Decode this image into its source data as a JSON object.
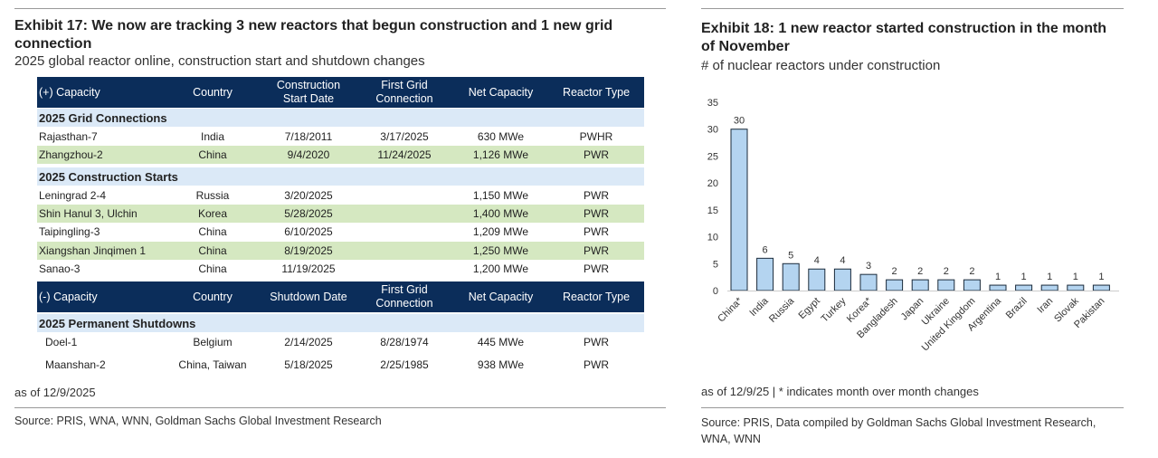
{
  "left": {
    "title": "Exhibit 17: We now are tracking 3 new reactors that begun construction and 1 new grid connection",
    "subtitle": "2025 global reactor online, construction start and shutdown changes",
    "header_plus": [
      "(+) Capacity",
      "Country",
      "Construction Start Date",
      "First Grid Connection",
      "Net Capacity",
      "Reactor Type"
    ],
    "header_minus": [
      "(-) Capacity",
      "Country",
      "Shutdown Date",
      "First Grid Connection",
      "Net Capacity",
      "Reactor Type"
    ],
    "sections": {
      "grid": "2025 Grid Connections",
      "construction": "2025 Construction Starts",
      "shutdown": "2025 Permanent Shutdowns"
    },
    "grid_rows": [
      [
        "Rajasthan-7",
        "India",
        "7/18/2011",
        "3/17/2025",
        "630 MWe",
        "PWHR"
      ],
      [
        "Zhangzhou-2",
        "China",
        "9/4/2020",
        "11/24/2025",
        "1,126 MWe",
        "PWR"
      ]
    ],
    "construction_rows": [
      [
        "Leningrad 2-4",
        "Russia",
        "3/20/2025",
        "",
        "1,150 MWe",
        "PWR"
      ],
      [
        "Shin Hanul 3, Ulchin",
        "Korea",
        "5/28/2025",
        "",
        "1,400 MWe",
        "PWR"
      ],
      [
        "Taipingling-3",
        "China",
        "6/10/2025",
        "",
        "1,209 MWe",
        "PWR"
      ],
      [
        "Xiangshan Jinqimen 1",
        "China",
        "8/19/2025",
        "",
        "1,250 MWe",
        "PWR"
      ],
      [
        "Sanao-3",
        "China",
        "11/19/2025",
        "",
        "1,200 MWe",
        "PWR"
      ]
    ],
    "shutdown_rows": [
      [
        "Doel-1",
        "Belgium",
        "2/14/2025",
        "8/28/1974",
        "445 MWe",
        "PWR"
      ],
      [
        "Maanshan-2",
        "China, Taiwan",
        "5/18/2025",
        "2/25/1985",
        "938 MWe",
        "PWR"
      ]
    ],
    "asof": "as of 12/9/2025",
    "source": "Source: PRIS, WNA, WNN, Goldman Sachs Global Investment Research"
  },
  "right": {
    "title": "Exhibit 18: 1 new reactor started construction in the month of November",
    "subtitle": "# of nuclear reactors under construction",
    "asof": "as of 12/9/25 | * indicates month over month changes",
    "source": "Source: PRIS, Data compiled by Goldman Sachs Global Investment Research, WNA, WNN"
  },
  "chart_data": {
    "type": "bar",
    "categories": [
      "China*",
      "India",
      "Russia",
      "Egypt",
      "Turkey",
      "Korea*",
      "Bangladesh",
      "Japan",
      "Ukraine",
      "United Kingdom",
      "Argentina",
      "Brazil",
      "Iran",
      "Slovak",
      "Pakistan"
    ],
    "values": [
      30,
      6,
      5,
      4,
      4,
      3,
      2,
      2,
      2,
      2,
      1,
      1,
      1,
      1,
      1
    ],
    "ylim": [
      0,
      35
    ],
    "yticks": [
      0,
      5,
      10,
      15,
      20,
      25,
      30,
      35
    ],
    "grid": false,
    "bar_color": "#b4d4f0",
    "bar_edge": "#1a2a3a"
  },
  "colors": {
    "header": "#0b2d5a",
    "section": "#dbe9f7",
    "green_row": "#d5e8c1"
  }
}
